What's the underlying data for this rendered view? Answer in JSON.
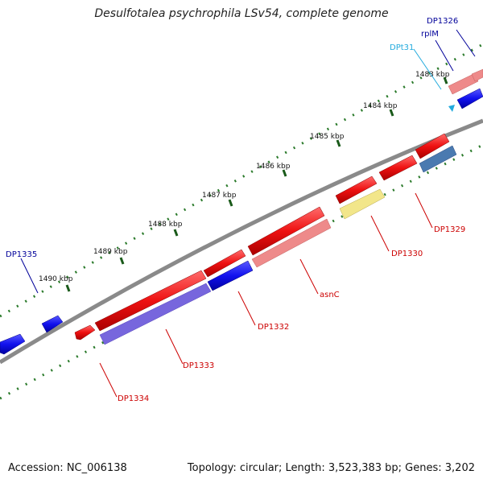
{
  "title": "Desulfotalea psychrophila LSv54, complete genome",
  "footer": {
    "accession": "Accession: NC_006138",
    "topology": "Topology: circular; Length: 3,523,383 bp; Genes: 3,202"
  },
  "ticks": [
    "1483 kbp",
    "1484 kbp",
    "1485 kbp",
    "1486 kbp",
    "1487 kbp",
    "1488 kbp",
    "1489 kbp",
    "1490 kbp"
  ],
  "genes": {
    "DP1326": "DP1326",
    "rplM": "rplM",
    "DPt31": "DPt31",
    "DP1329": "DP1329",
    "DP1330": "DP1330",
    "asnC": "asnC",
    "DP1332": "DP1332",
    "DP1333": "DP1333",
    "DP1334": "DP1334",
    "DP1335": "DP1335"
  },
  "colors": {
    "forward_gene": "#ee1111",
    "reverse_gene": "#1111dd",
    "forward_label": "#cc0000",
    "reverse_label": "#000099",
    "trna": "#22aadd",
    "backbone": "#808080",
    "tick": "#2a7a2a"
  }
}
